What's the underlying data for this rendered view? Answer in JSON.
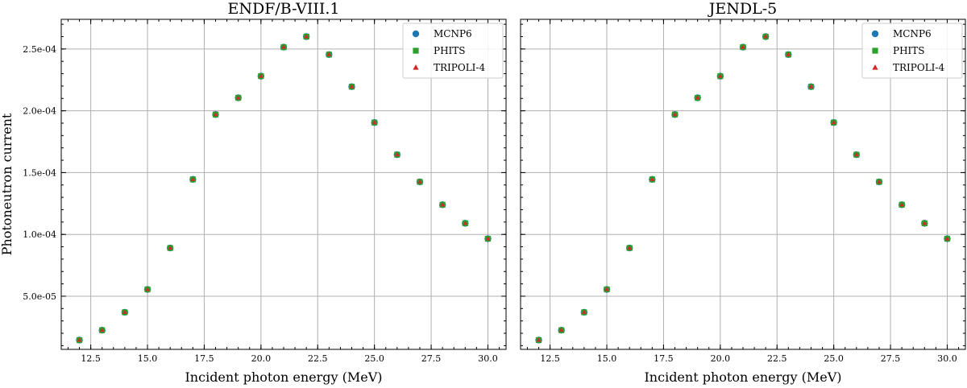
{
  "chart_data": [
    {
      "type": "scatter",
      "title": "ENDF/B-VIII.1",
      "xlabel": "Incident photon energy (MeV)",
      "ylabel": "Photoneutron current",
      "xlim": [
        11.2,
        30.8
      ],
      "ylim": [
        7e-06,
        0.000274
      ],
      "xticks": [
        "12.5",
        "15.0",
        "17.5",
        "20.0",
        "22.5",
        "25.0",
        "27.5",
        "30.0"
      ],
      "yticks": [
        "5.0e-05",
        "1.0e-04",
        "1.5e-04",
        "2.0e-04",
        "2.5e-04"
      ],
      "grid": true,
      "legend": "top-right",
      "x": [
        12,
        13,
        14,
        15,
        16,
        17,
        18,
        19,
        20,
        21,
        22,
        23,
        24,
        25,
        26,
        27,
        28,
        29,
        30
      ],
      "series": [
        {
          "name": "MCNP6",
          "marker": "circle",
          "color": "#1f77b4",
          "values": [
            1.45e-05,
            2.25e-05,
            3.7e-05,
            5.55e-05,
            8.9e-05,
            0.0001445,
            0.000197,
            0.0002105,
            0.000228,
            0.0002515,
            0.00026,
            0.0002455,
            0.0002195,
            0.0001905,
            0.0001645,
            0.0001425,
            0.000124,
            0.000109,
            9.65e-05
          ]
        },
        {
          "name": "PHITS",
          "marker": "square",
          "color": "#2ca02c",
          "values": [
            1.45e-05,
            2.25e-05,
            3.7e-05,
            5.55e-05,
            8.9e-05,
            0.0001445,
            0.000197,
            0.0002105,
            0.000228,
            0.0002515,
            0.00026,
            0.0002455,
            0.0002195,
            0.0001905,
            0.0001645,
            0.0001425,
            0.000124,
            0.000109,
            9.65e-05
          ]
        },
        {
          "name": "TRIPOLI-4",
          "marker": "triangle",
          "color": "#d62728",
          "values": [
            1.45e-05,
            2.25e-05,
            3.7e-05,
            5.55e-05,
            8.9e-05,
            0.0001445,
            0.000197,
            0.0002105,
            0.000228,
            0.0002515,
            0.00026,
            0.0002455,
            0.0002195,
            0.0001905,
            0.0001645,
            0.0001425,
            0.000124,
            0.000109,
            9.65e-05
          ]
        }
      ]
    },
    {
      "type": "scatter",
      "title": "JENDL-5",
      "xlabel": "Incident photon energy (MeV)",
      "ylabel": "",
      "xlim": [
        11.2,
        30.8
      ],
      "ylim": [
        7e-06,
        0.000274
      ],
      "xticks": [
        "12.5",
        "15.0",
        "17.5",
        "20.0",
        "22.5",
        "25.0",
        "27.5",
        "30.0"
      ],
      "yticks": [],
      "grid": true,
      "legend": "top-right",
      "x": [
        12,
        13,
        14,
        15,
        16,
        17,
        18,
        19,
        20,
        21,
        22,
        23,
        24,
        25,
        26,
        27,
        28,
        29,
        30
      ],
      "series": [
        {
          "name": "MCNP6",
          "marker": "circle",
          "color": "#1f77b4",
          "values": [
            1.45e-05,
            2.25e-05,
            3.7e-05,
            5.55e-05,
            8.9e-05,
            0.0001445,
            0.000197,
            0.0002105,
            0.000228,
            0.0002515,
            0.00026,
            0.0002455,
            0.0002195,
            0.0001905,
            0.0001645,
            0.0001425,
            0.000124,
            0.000109,
            9.65e-05
          ]
        },
        {
          "name": "PHITS",
          "marker": "square",
          "color": "#2ca02c",
          "values": [
            1.45e-05,
            2.25e-05,
            3.7e-05,
            5.55e-05,
            8.9e-05,
            0.0001445,
            0.000197,
            0.0002105,
            0.000228,
            0.0002515,
            0.00026,
            0.0002455,
            0.0002195,
            0.0001905,
            0.0001645,
            0.0001425,
            0.000124,
            0.000109,
            9.65e-05
          ]
        },
        {
          "name": "TRIPOLI-4",
          "marker": "triangle",
          "color": "#d62728",
          "values": [
            1.45e-05,
            2.25e-05,
            3.7e-05,
            5.55e-05,
            8.9e-05,
            0.0001445,
            0.000197,
            0.0002105,
            0.000228,
            0.0002515,
            0.00026,
            0.0002455,
            0.0002195,
            0.0001905,
            0.0001645,
            0.0001425,
            0.000124,
            0.000109,
            9.65e-05
          ]
        }
      ]
    }
  ]
}
